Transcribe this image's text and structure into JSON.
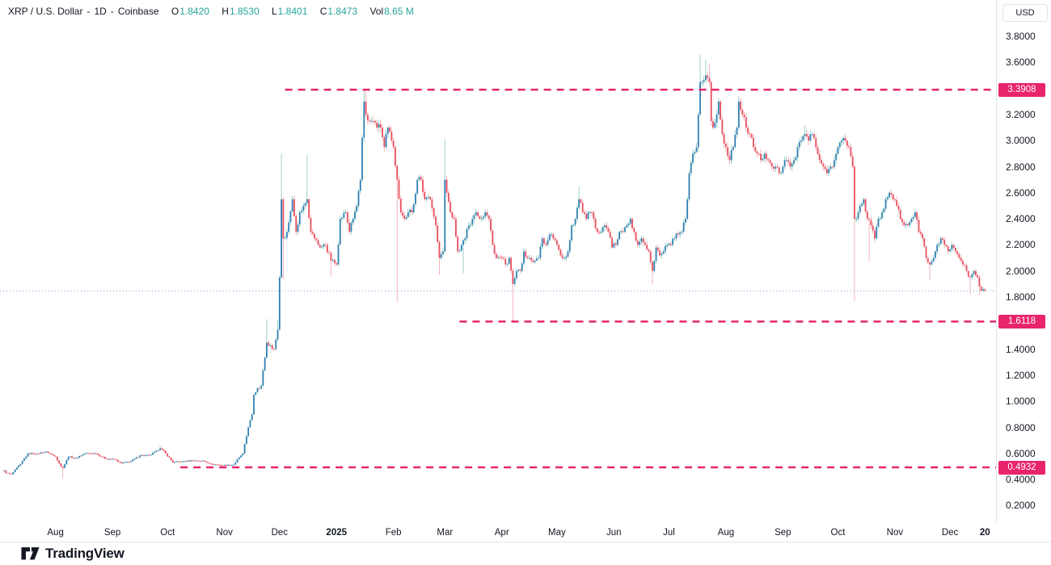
{
  "header": {
    "title": "XRP / U.S. Dollar",
    "sep": "-",
    "interval": "1D",
    "exchange": "Coinbase",
    "o_label": "O",
    "o_value": "1.8420",
    "h_label": "H",
    "h_value": "1.8530",
    "l_label": "L",
    "l_value": "1.8401",
    "c_label": "C",
    "c_value": "1.8473",
    "vol_label": "Vol",
    "vol_value": "8.65 M"
  },
  "price_axis": {
    "currency_label": "USD",
    "ticks": [
      {
        "value": 3.8,
        "label": "3.8000"
      },
      {
        "value": 3.6,
        "label": "3.6000"
      },
      {
        "value": 3.2,
        "label": "3.2000"
      },
      {
        "value": 3.0,
        "label": "3.0000"
      },
      {
        "value": 2.8,
        "label": "2.8000"
      },
      {
        "value": 2.6,
        "label": "2.6000"
      },
      {
        "value": 2.4,
        "label": "2.4000"
      },
      {
        "value": 2.2,
        "label": "2.2000"
      },
      {
        "value": 2.0,
        "label": "2.0000"
      },
      {
        "value": 1.8,
        "label": "1.8000"
      },
      {
        "value": 1.4,
        "label": "1.4000"
      },
      {
        "value": 1.2,
        "label": "1.2000"
      },
      {
        "value": 1.0,
        "label": "1.0000"
      },
      {
        "value": 0.8,
        "label": "0.8000"
      },
      {
        "value": 0.6,
        "label": "0.6000"
      },
      {
        "value": 0.4,
        "label": "0.4000"
      },
      {
        "value": 0.2,
        "label": "0.2000"
      }
    ]
  },
  "time_axis": {
    "labels": [
      {
        "text": "Aug",
        "day": 28,
        "bold": false
      },
      {
        "text": "Sep",
        "day": 59,
        "bold": false
      },
      {
        "text": "Oct",
        "day": 89,
        "bold": false
      },
      {
        "text": "Nov",
        "day": 120,
        "bold": false
      },
      {
        "text": "Dec",
        "day": 150,
        "bold": false
      },
      {
        "text": "2025",
        "day": 181,
        "bold": true
      },
      {
        "text": "Feb",
        "day": 212,
        "bold": false
      },
      {
        "text": "Mar",
        "day": 240,
        "bold": false
      },
      {
        "text": "Apr",
        "day": 271,
        "bold": false
      },
      {
        "text": "May",
        "day": 301,
        "bold": false
      },
      {
        "text": "Jun",
        "day": 332,
        "bold": false
      },
      {
        "text": "Jul",
        "day": 362,
        "bold": false
      },
      {
        "text": "Aug",
        "day": 393,
        "bold": false
      },
      {
        "text": "Sep",
        "day": 424,
        "bold": false
      },
      {
        "text": "Oct",
        "day": 454,
        "bold": false
      },
      {
        "text": "Nov",
        "day": 485,
        "bold": false
      },
      {
        "text": "Dec",
        "day": 515,
        "bold": false
      },
      {
        "text": "20",
        "day": 534,
        "bold": true
      }
    ]
  },
  "branding": {
    "logo_text": "TradingView"
  },
  "chart_data": {
    "type": "candlestick",
    "symbol": "XRP/USD",
    "timeframe": "1D",
    "exchange": "Coinbase",
    "current_ohlc": {
      "open": 1.842,
      "high": 1.853,
      "low": 1.8401,
      "close": 1.8473,
      "volume": "8.65 M"
    },
    "current_price": 1.8473,
    "ylim": [
      0.15,
      3.95
    ],
    "grid": false,
    "x_unit": "days_from_2024-07-04",
    "levels": [
      {
        "label": "3.3908",
        "value": 3.3908,
        "start_day": 153
      },
      {
        "label": "1.6118",
        "value": 1.6118,
        "start_day": 248
      },
      {
        "label": "0.4932",
        "value": 0.4932,
        "start_day": 96
      }
    ],
    "waypoints": [
      [
        0,
        0.47
      ],
      [
        1,
        0.45
      ],
      [
        4,
        0.44
      ],
      [
        9,
        0.52
      ],
      [
        13,
        0.6
      ],
      [
        18,
        0.6
      ],
      [
        23,
        0.615
      ],
      [
        28,
        0.575
      ],
      [
        31,
        0.5
      ],
      [
        32,
        0.49
      ],
      [
        35,
        0.575
      ],
      [
        39,
        0.565
      ],
      [
        44,
        0.6
      ],
      [
        50,
        0.6
      ],
      [
        55,
        0.56
      ],
      [
        60,
        0.555
      ],
      [
        64,
        0.525
      ],
      [
        69,
        0.54
      ],
      [
        74,
        0.585
      ],
      [
        79,
        0.585
      ],
      [
        84,
        0.625
      ],
      [
        85,
        0.64
      ],
      [
        88,
        0.6
      ],
      [
        92,
        0.53
      ],
      [
        97,
        0.54
      ],
      [
        103,
        0.545
      ],
      [
        108,
        0.545
      ],
      [
        113,
        0.52
      ],
      [
        118,
        0.51
      ],
      [
        123,
        0.51
      ],
      [
        125,
        0.515
      ],
      [
        128,
        0.57
      ],
      [
        130,
        0.6
      ],
      [
        133,
        0.8
      ],
      [
        135,
        0.9
      ],
      [
        136,
        1.05
      ],
      [
        138,
        1.1
      ],
      [
        140,
        1.12
      ],
      [
        143,
        1.45
      ],
      [
        145,
        1.43
      ],
      [
        147,
        1.4
      ],
      [
        149,
        1.55
      ],
      [
        150,
        1.95
      ],
      [
        151,
        2.55
      ],
      [
        152,
        2.25
      ],
      [
        154,
        2.3
      ],
      [
        157,
        2.55
      ],
      [
        159,
        2.3
      ],
      [
        161,
        2.45
      ],
      [
        163,
        2.5
      ],
      [
        165,
        2.55
      ],
      [
        167,
        2.3
      ],
      [
        169,
        2.25
      ],
      [
        172,
        2.18
      ],
      [
        175,
        2.2
      ],
      [
        178,
        2.08
      ],
      [
        181,
        2.05
      ],
      [
        183,
        2.4
      ],
      [
        186,
        2.45
      ],
      [
        188,
        2.3
      ],
      [
        190,
        2.4
      ],
      [
        192,
        2.5
      ],
      [
        194,
        2.7
      ],
      [
        196,
        3.3
      ],
      [
        197,
        3.2
      ],
      [
        199,
        3.15
      ],
      [
        201,
        3.15
      ],
      [
        203,
        3.1
      ],
      [
        205,
        3.1
      ],
      [
        207,
        2.95
      ],
      [
        209,
        3.1
      ],
      [
        211,
        3.0
      ],
      [
        212,
        2.95
      ],
      [
        214,
        2.7
      ],
      [
        216,
        2.45
      ],
      [
        218,
        2.4
      ],
      [
        220,
        2.45
      ],
      [
        222,
        2.45
      ],
      [
        225,
        2.7
      ],
      [
        227,
        2.7
      ],
      [
        229,
        2.55
      ],
      [
        232,
        2.55
      ],
      [
        235,
        2.35
      ],
      [
        237,
        2.1
      ],
      [
        239,
        2.15
      ],
      [
        240,
        2.7
      ],
      [
        241,
        2.6
      ],
      [
        243,
        2.45
      ],
      [
        245,
        2.4
      ],
      [
        247,
        2.15
      ],
      [
        249,
        2.2
      ],
      [
        251,
        2.25
      ],
      [
        253,
        2.35
      ],
      [
        255,
        2.4
      ],
      [
        257,
        2.45
      ],
      [
        259,
        2.4
      ],
      [
        262,
        2.45
      ],
      [
        264,
        2.4
      ],
      [
        266,
        2.2
      ],
      [
        268,
        2.1
      ],
      [
        271,
        2.1
      ],
      [
        273,
        2.05
      ],
      [
        275,
        2.1
      ],
      [
        277,
        1.9
      ],
      [
        279,
        2.0
      ],
      [
        281,
        2.0
      ],
      [
        283,
        2.15
      ],
      [
        285,
        2.1
      ],
      [
        287,
        2.08
      ],
      [
        289,
        2.08
      ],
      [
        291,
        2.1
      ],
      [
        293,
        2.25
      ],
      [
        295,
        2.2
      ],
      [
        297,
        2.28
      ],
      [
        299,
        2.25
      ],
      [
        301,
        2.2
      ],
      [
        303,
        2.12
      ],
      [
        305,
        2.1
      ],
      [
        307,
        2.15
      ],
      [
        309,
        2.35
      ],
      [
        311,
        2.4
      ],
      [
        313,
        2.55
      ],
      [
        315,
        2.45
      ],
      [
        317,
        2.4
      ],
      [
        319,
        2.45
      ],
      [
        321,
        2.4
      ],
      [
        323,
        2.3
      ],
      [
        325,
        2.3
      ],
      [
        327,
        2.35
      ],
      [
        329,
        2.3
      ],
      [
        331,
        2.18
      ],
      [
        333,
        2.2
      ],
      [
        335,
        2.3
      ],
      [
        337,
        2.3
      ],
      [
        339,
        2.35
      ],
      [
        341,
        2.4
      ],
      [
        343,
        2.3
      ],
      [
        345,
        2.2
      ],
      [
        347,
        2.25
      ],
      [
        349,
        2.2
      ],
      [
        351,
        2.15
      ],
      [
        353,
        2.0
      ],
      [
        355,
        2.18
      ],
      [
        357,
        2.12
      ],
      [
        359,
        2.15
      ],
      [
        361,
        2.2
      ],
      [
        363,
        2.2
      ],
      [
        365,
        2.25
      ],
      [
        367,
        2.28
      ],
      [
        369,
        2.3
      ],
      [
        371,
        2.4
      ],
      [
        372,
        2.55
      ],
      [
        373,
        2.75
      ],
      [
        375,
        2.9
      ],
      [
        377,
        2.95
      ],
      [
        378,
        3.2
      ],
      [
        379,
        3.45
      ],
      [
        380,
        3.45
      ],
      [
        382,
        3.5
      ],
      [
        384,
        3.45
      ],
      [
        385,
        3.15
      ],
      [
        386,
        3.1
      ],
      [
        388,
        3.2
      ],
      [
        389,
        3.3
      ],
      [
        391,
        3.05
      ],
      [
        393,
        2.95
      ],
      [
        395,
        2.85
      ],
      [
        397,
        2.95
      ],
      [
        399,
        3.1
      ],
      [
        400,
        3.3
      ],
      [
        402,
        3.2
      ],
      [
        404,
        3.1
      ],
      [
        406,
        3.05
      ],
      [
        408,
        2.95
      ],
      [
        410,
        2.9
      ],
      [
        412,
        2.85
      ],
      [
        414,
        2.9
      ],
      [
        416,
        2.85
      ],
      [
        418,
        2.8
      ],
      [
        420,
        2.8
      ],
      [
        422,
        2.75
      ],
      [
        424,
        2.8
      ],
      [
        426,
        2.85
      ],
      [
        428,
        2.8
      ],
      [
        430,
        2.85
      ],
      [
        432,
        2.95
      ],
      [
        434,
        3.0
      ],
      [
        436,
        3.05
      ],
      [
        438,
        3.0
      ],
      [
        440,
        3.05
      ],
      [
        442,
        2.95
      ],
      [
        444,
        2.85
      ],
      [
        446,
        2.8
      ],
      [
        448,
        2.75
      ],
      [
        450,
        2.8
      ],
      [
        452,
        2.85
      ],
      [
        454,
        2.95
      ],
      [
        456,
        3.0
      ],
      [
        458,
        3.0
      ],
      [
        460,
        2.95
      ],
      [
        462,
        2.8
      ],
      [
        463,
        2.4
      ],
      [
        464,
        2.4
      ],
      [
        466,
        2.5
      ],
      [
        468,
        2.55
      ],
      [
        470,
        2.4
      ],
      [
        472,
        2.35
      ],
      [
        474,
        2.25
      ],
      [
        476,
        2.4
      ],
      [
        478,
        2.45
      ],
      [
        480,
        2.55
      ],
      [
        482,
        2.6
      ],
      [
        484,
        2.55
      ],
      [
        486,
        2.5
      ],
      [
        488,
        2.4
      ],
      [
        490,
        2.35
      ],
      [
        492,
        2.35
      ],
      [
        494,
        2.4
      ],
      [
        496,
        2.45
      ],
      [
        498,
        2.3
      ],
      [
        500,
        2.25
      ],
      [
        502,
        2.1
      ],
      [
        504,
        2.05
      ],
      [
        506,
        2.1
      ],
      [
        508,
        2.2
      ],
      [
        510,
        2.25
      ],
      [
        512,
        2.2
      ],
      [
        514,
        2.15
      ],
      [
        516,
        2.2
      ],
      [
        518,
        2.15
      ],
      [
        520,
        2.1
      ],
      [
        522,
        2.05
      ],
      [
        524,
        2.0
      ],
      [
        526,
        1.95
      ],
      [
        528,
        2.0
      ],
      [
        530,
        1.95
      ],
      [
        531,
        1.88
      ],
      [
        532,
        1.85
      ],
      [
        533,
        1.86
      ],
      [
        534,
        1.8473
      ]
    ],
    "spikes": [
      [
        32,
        0.41
      ],
      [
        85,
        0.66
      ],
      [
        143,
        1.63
      ],
      [
        149,
        1.62
      ],
      [
        151,
        2.9
      ],
      [
        152,
        1.94
      ],
      [
        165,
        2.89
      ],
      [
        178,
        1.96
      ],
      [
        196,
        3.4
      ],
      [
        197,
        3.39
      ],
      [
        214,
        1.76
      ],
      [
        237,
        1.97
      ],
      [
        240,
        3.01
      ],
      [
        250,
        1.98
      ],
      [
        277,
        1.6118
      ],
      [
        313,
        2.65
      ],
      [
        353,
        1.9
      ],
      [
        379,
        3.66
      ],
      [
        382,
        3.62
      ],
      [
        384,
        3.59
      ],
      [
        400,
        3.34
      ],
      [
        436,
        3.12
      ],
      [
        463,
        1.77
      ],
      [
        471,
        2.07
      ],
      [
        504,
        1.93
      ],
      [
        526,
        1.82
      ],
      [
        531,
        1.81
      ]
    ],
    "colors": {
      "up_body": "#2f7fb3",
      "up_wick": "#86c6bc",
      "down_body": "#e84d5c",
      "down_wick": "#f1a3ac",
      "level_line": "#e8246c",
      "level_badge_bg": "#e8246c",
      "level_badge_text": "#ffffff",
      "current_price_line": "#7f9ddb",
      "axis_text": "#131722",
      "axis_border": "#e0e3eb",
      "legend_value": "#26a69a"
    }
  }
}
